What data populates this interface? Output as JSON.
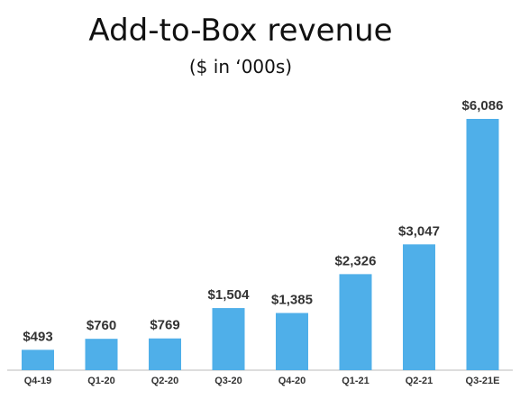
{
  "chart_data": {
    "type": "bar",
    "title": "Add-to-Box revenue",
    "subtitle": "($ in ‘000s)",
    "categories": [
      "Q4-19",
      "Q1-20",
      "Q2-20",
      "Q3-20",
      "Q4-20",
      "Q1-21",
      "Q2-21",
      "Q3-21E"
    ],
    "values": [
      493,
      760,
      769,
      1504,
      1385,
      2326,
      3047,
      6086
    ],
    "value_labels": [
      "$493",
      "$760",
      "$769",
      "$1,504",
      "$1,385",
      "$2,326",
      "$3,047",
      "$6,086"
    ],
    "ylim": [
      0,
      6086
    ],
    "grid": false,
    "legend": "none",
    "bar_color": "#4FAFE9",
    "axis_color": "#BBBBBB"
  }
}
